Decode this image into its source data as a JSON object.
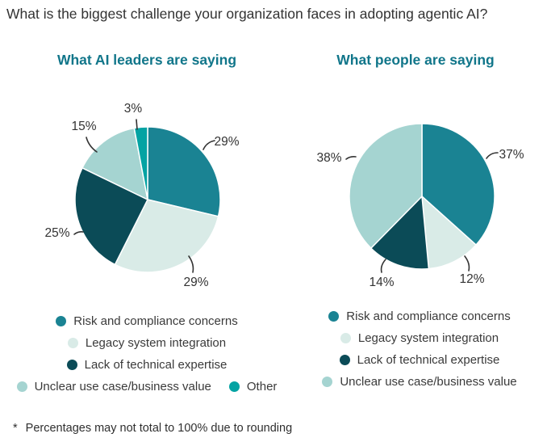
{
  "page": {
    "title": "What is the biggest challenge your organization faces in adopting agentic AI?",
    "footnote_marker": "*",
    "footnote_text": "Percentages may not total to 100% due to rounding"
  },
  "colors": {
    "heading_teal": "#11768a",
    "risk_teal": "#1a8393",
    "legacy_mint": "#d9ebe7",
    "lack_dark_teal": "#0b4b57",
    "unclear_light_teal": "#a5d4d1",
    "other_bright_teal": "#04a3a3",
    "text": "#333333"
  },
  "chart_data": [
    {
      "type": "pie",
      "title": "What AI leaders are saying",
      "categories": [
        "Risk and compliance concerns",
        "Legacy system integration",
        "Lack of technical expertise",
        "Unclear use case/business value",
        "Other"
      ],
      "values": [
        29,
        29,
        25,
        15,
        3
      ],
      "display_labels": [
        "29%",
        "29%",
        "25%",
        "15%",
        "3%"
      ],
      "colors": [
        "#1a8393",
        "#d9ebe7",
        "#0b4b57",
        "#a5d4d1",
        "#04a3a3"
      ],
      "start_angle_deg": 0,
      "direction": "clockwise",
      "legend_position": "bottom"
    },
    {
      "type": "pie",
      "title": "What people are saying",
      "categories": [
        "Risk and compliance concerns",
        "Legacy system integration",
        "Lack of technical expertise",
        "Unclear use case/business value"
      ],
      "values": [
        37,
        12,
        14,
        38
      ],
      "display_labels": [
        "37%",
        "12%",
        "14%",
        "38%"
      ],
      "colors": [
        "#1a8393",
        "#d9ebe7",
        "#0b4b57",
        "#a5d4d1"
      ],
      "start_angle_deg": 0,
      "direction": "clockwise",
      "legend_position": "bottom"
    }
  ]
}
